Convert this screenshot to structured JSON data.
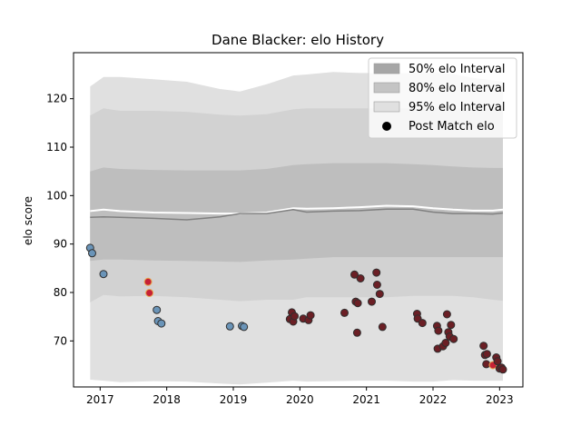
{
  "chart_data": {
    "type": "scatter",
    "title": "Dane Blacker: elo History",
    "xlabel": "",
    "ylabel": "elo score",
    "xlim": [
      2016.6,
      2023.35
    ],
    "ylim": [
      60.5,
      129.5
    ],
    "x_ticks": [
      "2017",
      "2018",
      "2019",
      "2020",
      "2021",
      "2022",
      "2023"
    ],
    "y_ticks": [
      "70",
      "80",
      "90",
      "100",
      "110",
      "120"
    ],
    "legend_position": "top-right",
    "legend": [
      {
        "label": "50% elo Interval",
        "kind": "band",
        "color": "#a6a6a6"
      },
      {
        "label": "80% elo Interval",
        "kind": "band",
        "color": "#c4c4c4"
      },
      {
        "label": "95% elo Interval",
        "kind": "band",
        "color": "#e0e0e0"
      },
      {
        "label": "Post Match elo",
        "kind": "marker",
        "color": "#000000"
      }
    ],
    "bands": {
      "x": [
        2016.85,
        2017.05,
        2017.3,
        2017.8,
        2018.3,
        2018.8,
        2019.1,
        2019.5,
        2019.9,
        2020.1,
        2020.5,
        2020.9,
        2021.3,
        2021.7,
        2022.0,
        2022.3,
        2022.6,
        2022.9,
        2023.05
      ],
      "p95_low": [
        62.0,
        61.8,
        61.5,
        61.7,
        61.6,
        61.2,
        61.0,
        61.4,
        61.8,
        61.6,
        61.7,
        61.8,
        61.8,
        61.6,
        61.6,
        61.9,
        61.8,
        61.8,
        61.8
      ],
      "p95_high": [
        122.5,
        124.5,
        124.5,
        124.0,
        123.5,
        122.0,
        121.5,
        123.0,
        124.8,
        125.0,
        125.5,
        125.3,
        125.3,
        125.3,
        125.4,
        125.1,
        124.3,
        123.8,
        123.5
      ],
      "p80_low": [
        78.0,
        79.5,
        79.2,
        79.3,
        79.0,
        78.5,
        78.2,
        78.5,
        78.5,
        79.0,
        79.0,
        79.0,
        79.0,
        79.3,
        79.3,
        79.3,
        79.0,
        78.5,
        78.3
      ],
      "p80_high": [
        116.5,
        118.0,
        117.5,
        117.5,
        117.3,
        116.7,
        116.5,
        116.8,
        117.8,
        118.0,
        118.0,
        118.0,
        118.0,
        118.0,
        118.0,
        118.0,
        118.0,
        118.0,
        118.0
      ],
      "p50_low": [
        86.5,
        86.8,
        86.8,
        86.6,
        86.5,
        86.4,
        86.3,
        86.6,
        86.8,
        87.0,
        87.3,
        87.3,
        87.3,
        87.3,
        87.3,
        87.3,
        87.3,
        87.3,
        87.3
      ],
      "p50_high": [
        105.0,
        105.8,
        105.5,
        105.3,
        105.2,
        105.2,
        105.2,
        105.5,
        106.3,
        106.5,
        106.7,
        106.7,
        106.7,
        106.5,
        106.3,
        106.0,
        105.8,
        105.7,
        105.7
      ],
      "median": [
        95.5,
        95.6,
        95.5,
        95.3,
        95.0,
        95.6,
        96.3,
        96.3,
        97.1,
        96.6,
        96.8,
        96.9,
        97.2,
        97.2,
        96.6,
        96.3,
        96.3,
        96.2,
        96.4
      ],
      "upper_line": [
        96.8,
        97.1,
        96.8,
        96.5,
        96.4,
        96.3,
        96.3,
        96.5,
        97.4,
        97.3,
        97.4,
        97.6,
        97.9,
        97.8,
        97.4,
        97.1,
        96.9,
        96.9,
        97.1
      ]
    },
    "points": [
      {
        "x": 2016.85,
        "y": 89.2,
        "color": "#6a94b8"
      },
      {
        "x": 2016.88,
        "y": 88.1,
        "color": "#6a94b8"
      },
      {
        "x": 2017.05,
        "y": 83.8,
        "color": "#6a94b8"
      },
      {
        "x": 2017.72,
        "y": 82.2,
        "color": "#c62136"
      },
      {
        "x": 2017.74,
        "y": 79.9,
        "color": "#c62136"
      },
      {
        "x": 2017.85,
        "y": 76.4,
        "color": "#6a94b8"
      },
      {
        "x": 2017.87,
        "y": 74.1,
        "color": "#6a94b8"
      },
      {
        "x": 2017.92,
        "y": 73.6,
        "color": "#6a94b8"
      },
      {
        "x": 2018.95,
        "y": 73.0,
        "color": "#6a94b8"
      },
      {
        "x": 2019.13,
        "y": 73.1,
        "color": "#6a94b8"
      },
      {
        "x": 2019.16,
        "y": 72.9,
        "color": "#6a94b8"
      },
      {
        "x": 2019.85,
        "y": 74.5,
        "color": "#6b1f25"
      },
      {
        "x": 2019.88,
        "y": 75.9,
        "color": "#6b1f25"
      },
      {
        "x": 2019.9,
        "y": 74.0,
        "color": "#6b1f25"
      },
      {
        "x": 2019.92,
        "y": 75.1,
        "color": "#6b1f25"
      },
      {
        "x": 2020.05,
        "y": 74.6,
        "color": "#6b1f25"
      },
      {
        "x": 2020.13,
        "y": 74.3,
        "color": "#6b1f25"
      },
      {
        "x": 2020.16,
        "y": 75.3,
        "color": "#6b1f25"
      },
      {
        "x": 2020.67,
        "y": 75.8,
        "color": "#6b1f25"
      },
      {
        "x": 2020.82,
        "y": 83.7,
        "color": "#6b1f25"
      },
      {
        "x": 2020.84,
        "y": 78.1,
        "color": "#6b1f25"
      },
      {
        "x": 2020.87,
        "y": 77.8,
        "color": "#6b1f25"
      },
      {
        "x": 2020.86,
        "y": 71.7,
        "color": "#6b1f25"
      },
      {
        "x": 2020.91,
        "y": 82.9,
        "color": "#6b1f25"
      },
      {
        "x": 2021.08,
        "y": 78.1,
        "color": "#6b1f25"
      },
      {
        "x": 2021.15,
        "y": 84.1,
        "color": "#6b1f25"
      },
      {
        "x": 2021.16,
        "y": 81.6,
        "color": "#6b1f25"
      },
      {
        "x": 2021.2,
        "y": 79.7,
        "color": "#6b1f25"
      },
      {
        "x": 2021.24,
        "y": 72.9,
        "color": "#6b1f25"
      },
      {
        "x": 2021.76,
        "y": 75.6,
        "color": "#6b1f25"
      },
      {
        "x": 2021.77,
        "y": 74.6,
        "color": "#6b1f25"
      },
      {
        "x": 2021.84,
        "y": 73.7,
        "color": "#6b1f25"
      },
      {
        "x": 2022.06,
        "y": 73.1,
        "color": "#6b1f25"
      },
      {
        "x": 2022.08,
        "y": 72.1,
        "color": "#6b1f25"
      },
      {
        "x": 2022.07,
        "y": 68.4,
        "color": "#6b1f25"
      },
      {
        "x": 2022.15,
        "y": 68.9,
        "color": "#6b1f25"
      },
      {
        "x": 2022.19,
        "y": 69.6,
        "color": "#6b1f25"
      },
      {
        "x": 2022.21,
        "y": 75.5,
        "color": "#6b1f25"
      },
      {
        "x": 2022.23,
        "y": 71.8,
        "color": "#6b1f25"
      },
      {
        "x": 2022.25,
        "y": 70.9,
        "color": "#6b1f25"
      },
      {
        "x": 2022.27,
        "y": 73.3,
        "color": "#6b1f25"
      },
      {
        "x": 2022.31,
        "y": 70.4,
        "color": "#6b1f25"
      },
      {
        "x": 2022.76,
        "y": 69.0,
        "color": "#6b1f25"
      },
      {
        "x": 2022.78,
        "y": 67.1,
        "color": "#6b1f25"
      },
      {
        "x": 2022.81,
        "y": 67.3,
        "color": "#6b1f25"
      },
      {
        "x": 2022.8,
        "y": 65.2,
        "color": "#6b1f25"
      },
      {
        "x": 2022.9,
        "y": 65.0,
        "color": "#c62136"
      },
      {
        "x": 2022.95,
        "y": 66.6,
        "color": "#6b1f25"
      },
      {
        "x": 2022.97,
        "y": 65.8,
        "color": "#6b1f25"
      },
      {
        "x": 2023.0,
        "y": 64.3,
        "color": "#6b1f25"
      },
      {
        "x": 2023.03,
        "y": 64.5,
        "color": "#6b1f25"
      },
      {
        "x": 2023.05,
        "y": 64.1,
        "color": "#6b1f25"
      }
    ]
  }
}
